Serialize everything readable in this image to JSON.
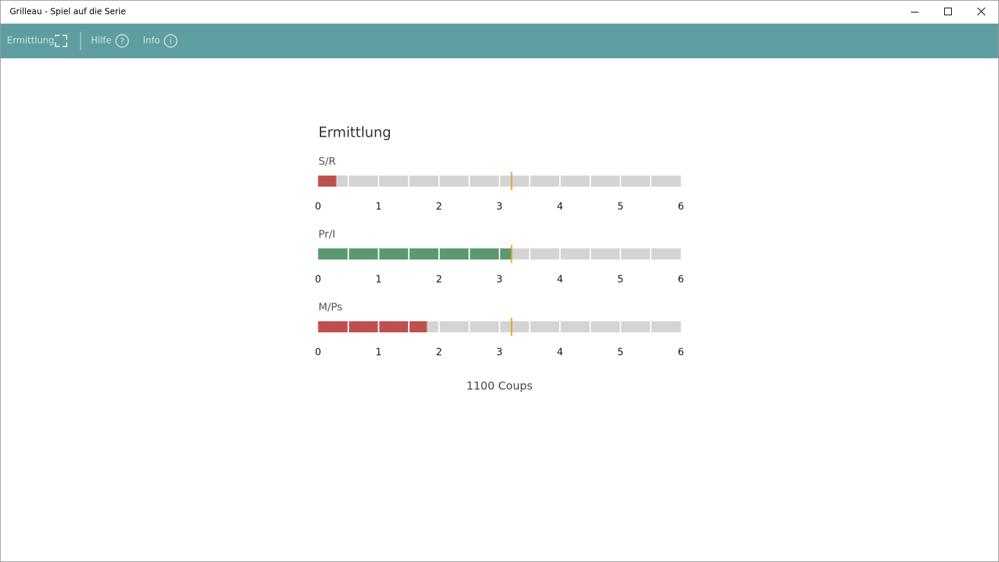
{
  "window": {
    "title": "Grilleau - Spiel auf die Serie"
  },
  "toolbar": {
    "items": [
      "Ermittlung",
      "Hilfe",
      "Info"
    ]
  },
  "panel": {
    "title": "Ermittlung",
    "xlim": [
      0,
      6
    ],
    "xticks": [
      0,
      1,
      2,
      3,
      4,
      5,
      6
    ],
    "segments": 12,
    "threshold": 3.2,
    "gauges": [
      {
        "label": "S/R",
        "value": 0.3,
        "color": "#c0504d"
      },
      {
        "label": "Pr/I",
        "value": 3.2,
        "color": "#5b9a71"
      },
      {
        "label": "M/Ps",
        "value": 1.8,
        "color": "#c0504d"
      }
    ],
    "footer": "1100 Coups"
  }
}
